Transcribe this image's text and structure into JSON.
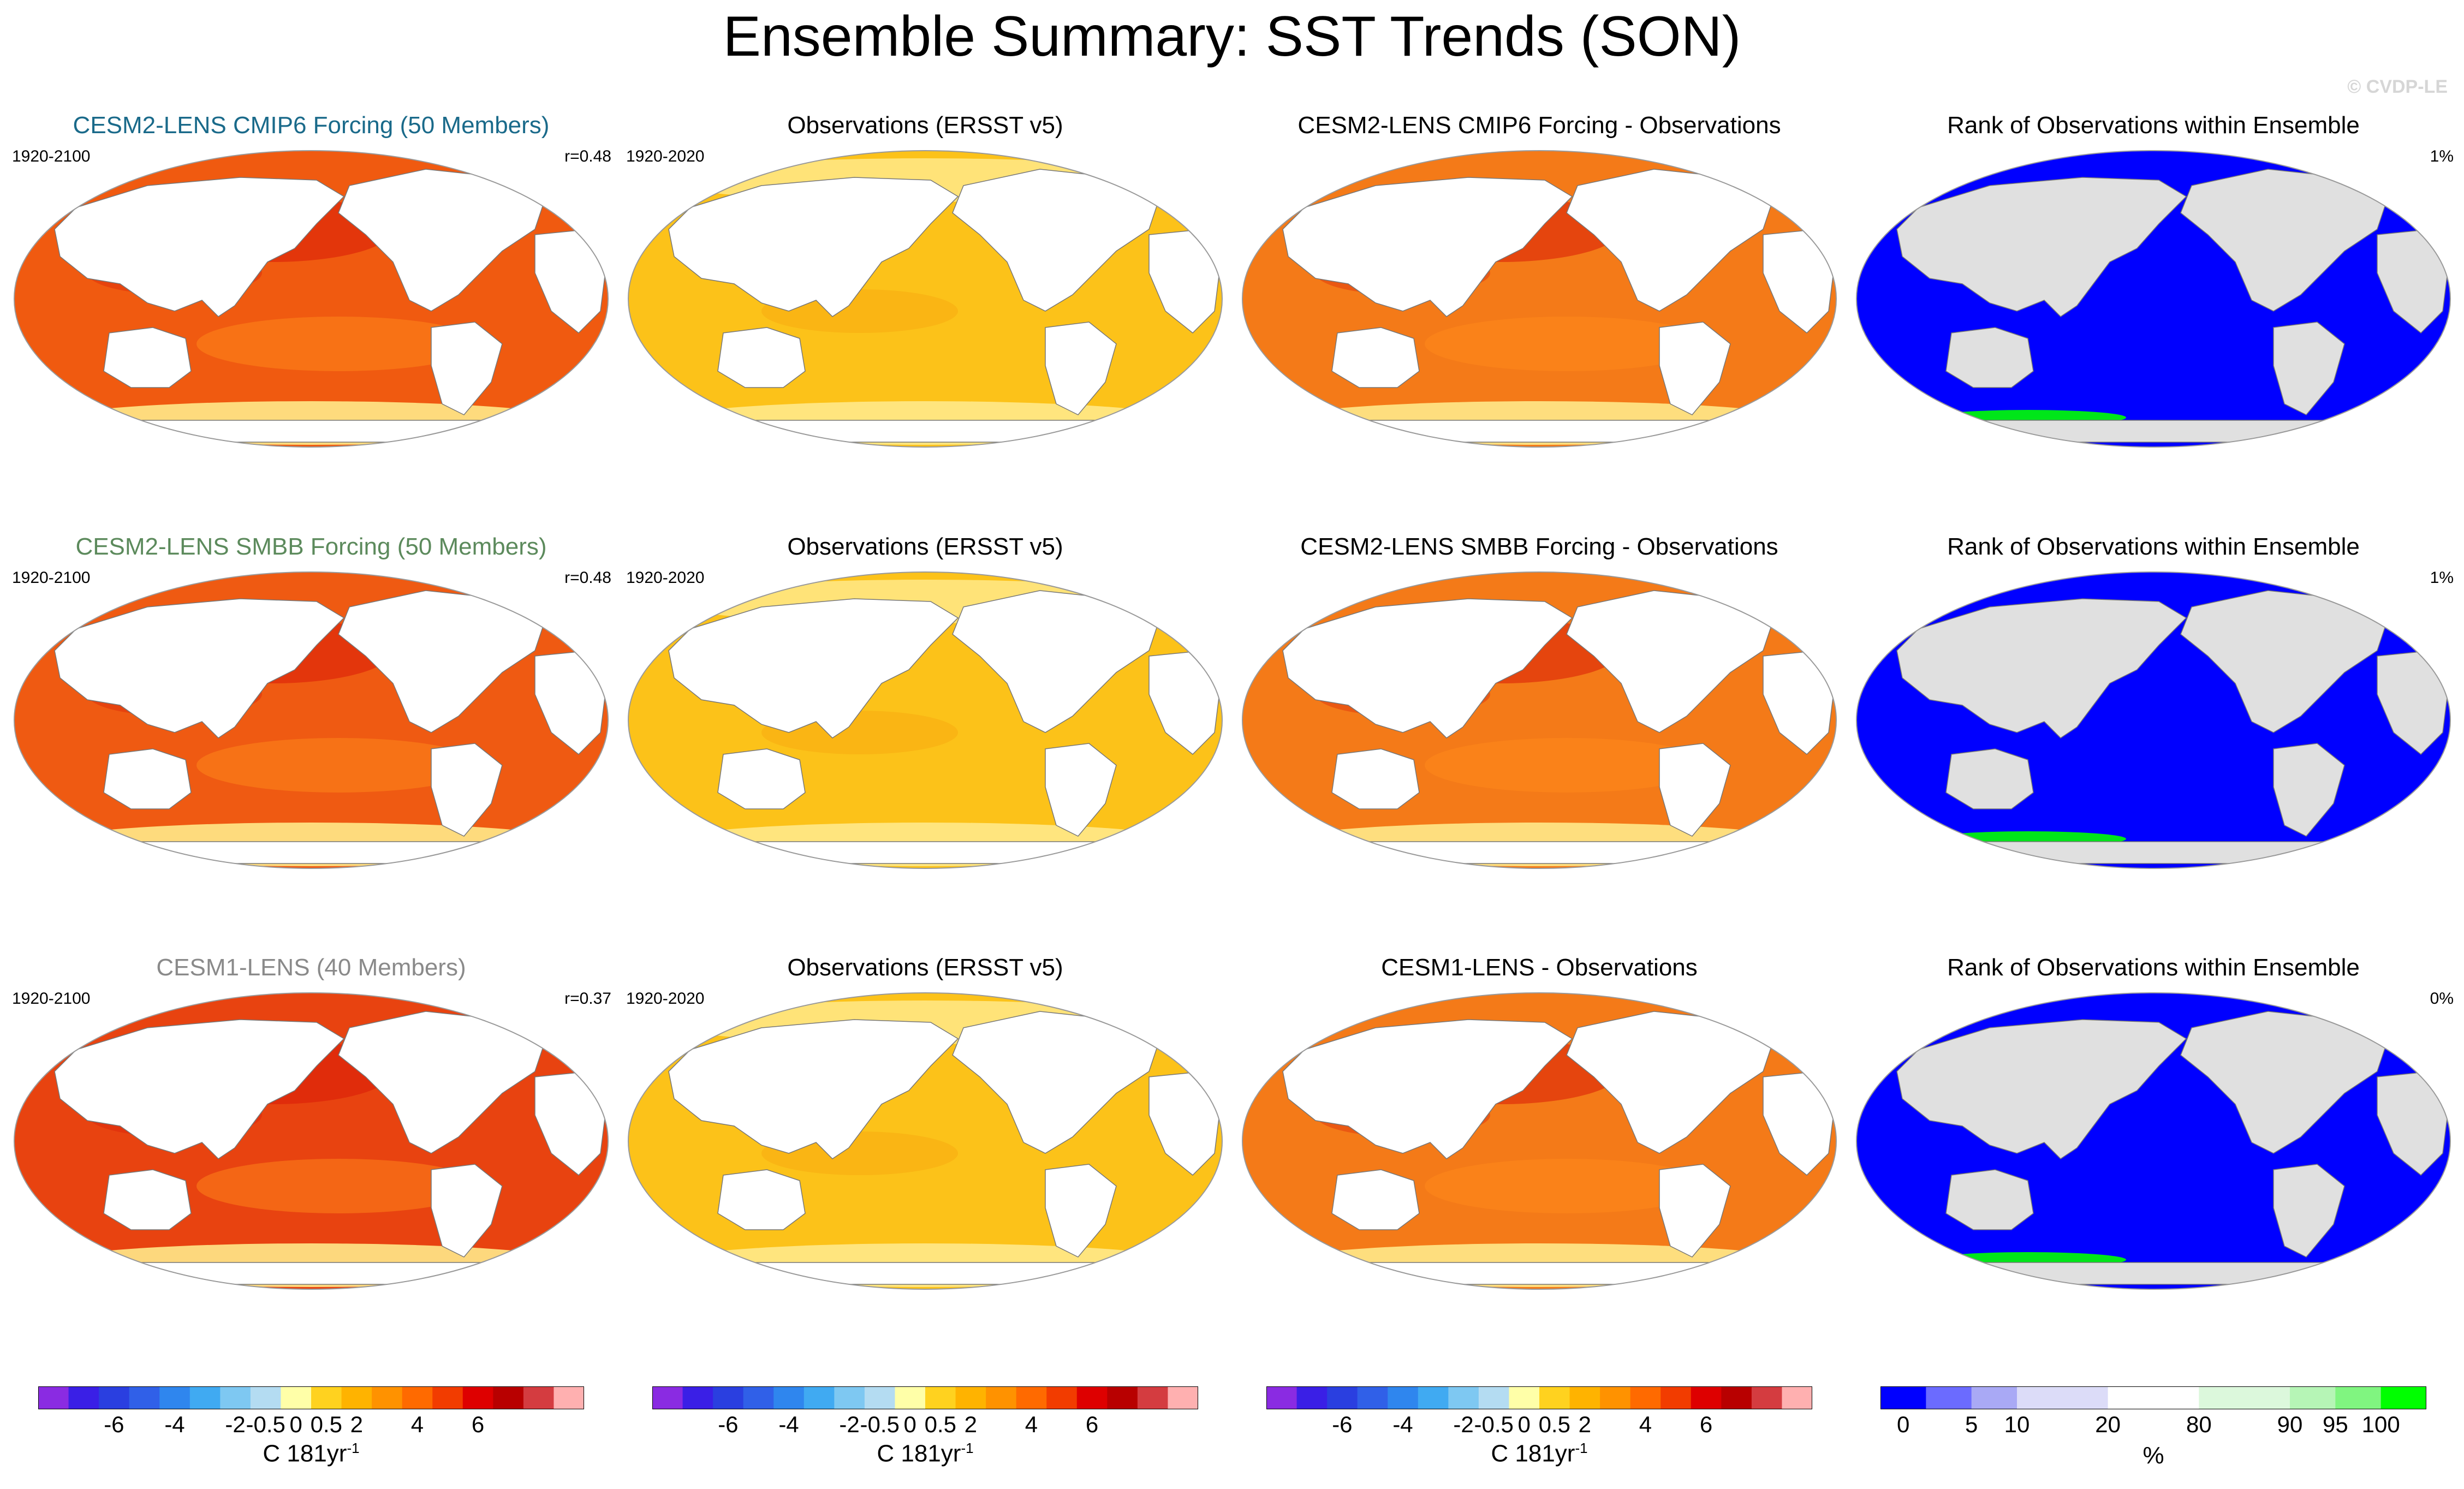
{
  "title": "Ensemble Summary: SST Trends (SON)",
  "copyright": "© CVDP-LE",
  "rows": [
    {
      "model": {
        "title": "CESM2-LENS CMIP6 Forcing (50 Members)",
        "title_color": "#1a6a8a",
        "period": "1920-2100",
        "stat": "r=0.48"
      },
      "obs": {
        "title": "Observations (ERSST v5)",
        "period": "1920-2020"
      },
      "diff": {
        "title": "CESM2-LENS CMIP6 Forcing - Observations"
      },
      "rank": {
        "title": "Rank of Observations within Ensemble",
        "stat": "1%"
      }
    },
    {
      "model": {
        "title": "CESM2-LENS SMBB Forcing (50 Members)",
        "title_color": "#5c8a5c",
        "period": "1920-2100",
        "stat": "r=0.48"
      },
      "obs": {
        "title": "Observations (ERSST v5)",
        "period": "1920-2020"
      },
      "diff": {
        "title": "CESM2-LENS SMBB Forcing - Observations"
      },
      "rank": {
        "title": "Rank of Observations within Ensemble",
        "stat": "1%"
      }
    },
    {
      "model": {
        "title": "CESM1-LENS (40 Members)",
        "title_color": "#8a8a8a",
        "period": "1920-2100",
        "stat": "r=0.37"
      },
      "obs": {
        "title": "Observations (ERSST v5)",
        "period": "1920-2020"
      },
      "diff": {
        "title": "CESM1-LENS - Observations"
      },
      "rank": {
        "title": "Rank of Observations within Ensemble",
        "stat": "0%"
      }
    }
  ],
  "chart_data": {
    "type": "heatmap",
    "trend_colorbar": {
      "label": "C 181yr",
      "label_exponent": "-1",
      "tick_labels": [
        "-6",
        "-4",
        "-2",
        "-0.5",
        "0",
        "0.5",
        "2",
        "4",
        "6"
      ],
      "colors": [
        "#8a2be2",
        "#3a1fe6",
        "#2a3fe0",
        "#3060e8",
        "#2f86ee",
        "#40aaf2",
        "#7ec8f2",
        "#b4dcf2",
        "#ffffa8",
        "#ffd21f",
        "#ffb300",
        "#ff9200",
        "#ff6a00",
        "#f23c00",
        "#de0000",
        "#b80000",
        "#d43c40",
        "#ffb0b0"
      ]
    },
    "rank_colorbar": {
      "label": "%",
      "tick_labels": [
        "0",
        "5",
        "10",
        "20",
        "80",
        "90",
        "95",
        "100"
      ],
      "colors": [
        "#0000ff",
        "#6b6bff",
        "#a9a9f5",
        "#dcdcf8",
        "#ffffff",
        "#dcf8dc",
        "#b6f5b6",
        "#80f580",
        "#00ff00"
      ]
    },
    "map_fills": {
      "model_row1": "#f05a10",
      "model_row2": "#ef5a12",
      "model_row3": "#e84310",
      "obs": "#fcc219",
      "diff": "#f47a18",
      "rank": "#0000ff"
    }
  }
}
